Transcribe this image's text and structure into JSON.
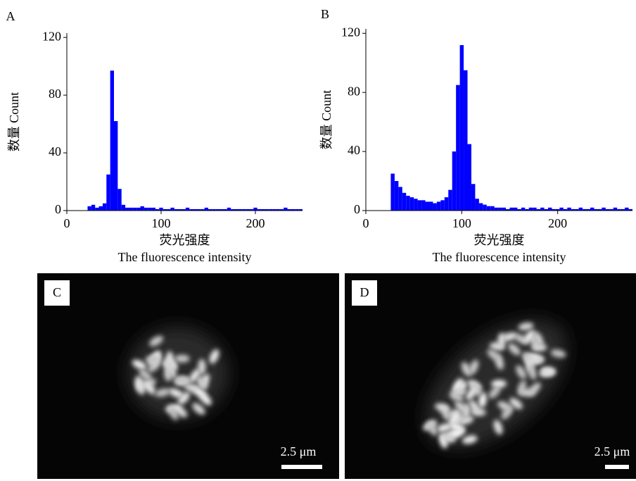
{
  "chart_data": [
    {
      "type": "histogram",
      "panel_label": "A",
      "ylabel": "数量 Count",
      "xlabel": [
        "荧光强度",
        "The fluorescence intensity"
      ],
      "color": "#0000ff",
      "bins": [
        22,
        26,
        30,
        34,
        38,
        42,
        46,
        50,
        54,
        58,
        62,
        66,
        70,
        74,
        78,
        82,
        86,
        90,
        94,
        98,
        102,
        106,
        110,
        114,
        118,
        122,
        126,
        130,
        134,
        138,
        142,
        146,
        150,
        154,
        158,
        162,
        166,
        170,
        174,
        178,
        182,
        186,
        190,
        194,
        198,
        202,
        206,
        210,
        214,
        218,
        222,
        226,
        230,
        234,
        238,
        242,
        246,
        250
      ],
      "counts": [
        3,
        4,
        2,
        3,
        5,
        25,
        97,
        62,
        15,
        4,
        2,
        2,
        2,
        2,
        3,
        2,
        2,
        2,
        1,
        2,
        1,
        1,
        2,
        1,
        1,
        1,
        2,
        1,
        1,
        1,
        1,
        2,
        1,
        1,
        1,
        1,
        1,
        2,
        1,
        1,
        1,
        1,
        1,
        1,
        2,
        1,
        1,
        1,
        1,
        1,
        1,
        1,
        2,
        1,
        1,
        1,
        1
      ],
      "xlim": [
        0,
        250
      ],
      "ylim": [
        0,
        123
      ],
      "xticks": [
        0,
        100,
        200
      ],
      "yticks": [
        0,
        40,
        80,
        120
      ]
    },
    {
      "type": "histogram",
      "panel_label": "B",
      "ylabel": "数量 Count",
      "xlabel": [
        "荧光强度",
        "The fluorescence intensity"
      ],
      "color": "#0000ff",
      "bins": [
        26,
        30,
        34,
        38,
        42,
        46,
        50,
        54,
        58,
        62,
        66,
        70,
        74,
        78,
        82,
        86,
        90,
        94,
        98,
        102,
        106,
        110,
        114,
        118,
        122,
        126,
        130,
        134,
        138,
        142,
        146,
        150,
        154,
        158,
        162,
        166,
        170,
        174,
        178,
        182,
        186,
        190,
        194,
        198,
        202,
        206,
        210,
        214,
        218,
        222,
        226,
        230,
        234,
        238,
        242,
        246,
        250,
        254,
        258,
        262,
        266,
        270,
        274,
        278
      ],
      "counts": [
        25,
        20,
        16,
        12,
        10,
        9,
        8,
        7,
        7,
        6,
        6,
        5,
        6,
        7,
        9,
        14,
        40,
        85,
        112,
        95,
        45,
        18,
        8,
        5,
        4,
        3,
        3,
        2,
        2,
        2,
        1,
        2,
        2,
        1,
        2,
        1,
        2,
        2,
        1,
        2,
        1,
        2,
        1,
        1,
        2,
        1,
        2,
        1,
        1,
        2,
        1,
        1,
        2,
        1,
        1,
        2,
        1,
        1,
        2,
        1,
        1,
        2,
        1
      ],
      "xlim": [
        0,
        278
      ],
      "ylim": [
        0,
        123
      ],
      "xticks": [
        0,
        100,
        200
      ],
      "yticks": [
        0,
        40,
        80,
        120
      ]
    }
  ],
  "images": [
    {
      "label": "C",
      "scale_bar": "2.5 μm"
    },
    {
      "label": "D",
      "scale_bar": "2.5 μm"
    }
  ]
}
